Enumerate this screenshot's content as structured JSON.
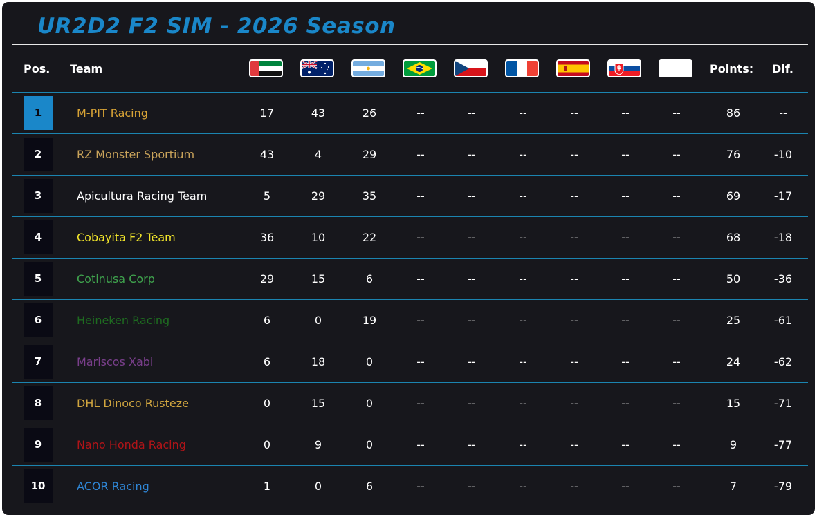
{
  "title": "UR2D2 F2 SIM - 2026 Season",
  "colors": {
    "title": "#1a87c9",
    "panel_bg": "#17171c",
    "row_line": "#1b84b0",
    "leader_box": "#1a87c9"
  },
  "headers": {
    "pos": "Pos.",
    "team": "Team",
    "points": "Points:",
    "dif": "Dif."
  },
  "races": [
    {
      "flag": "uae-flag-icon"
    },
    {
      "flag": "australia-flag-icon"
    },
    {
      "flag": "argentina-flag-icon"
    },
    {
      "flag": "brazil-flag-icon"
    },
    {
      "flag": "czech-flag-icon"
    },
    {
      "flag": "france-flag-icon"
    },
    {
      "flag": "spain-flag-icon"
    },
    {
      "flag": "slovakia-flag-icon"
    },
    {
      "flag": "blank-flag-icon"
    }
  ],
  "standings": [
    {
      "pos": "1",
      "team": "M-PIT Racing",
      "color": "#d9a436",
      "results": [
        "17",
        "43",
        "26",
        "--",
        "--",
        "--",
        "--",
        "--",
        "--"
      ],
      "points": "86",
      "dif": "--"
    },
    {
      "pos": "2",
      "team": "RZ Monster Sportium",
      "color": "#c9a35a",
      "results": [
        "43",
        "4",
        "29",
        "--",
        "--",
        "--",
        "--",
        "--",
        "--"
      ],
      "points": "76",
      "dif": "-10"
    },
    {
      "pos": "3",
      "team": "Apicultura Racing Team",
      "color": "#ffffff",
      "results": [
        "5",
        "29",
        "35",
        "--",
        "--",
        "--",
        "--",
        "--",
        "--"
      ],
      "points": "69",
      "dif": "-17"
    },
    {
      "pos": "4",
      "team": "Cobayita F2 Team",
      "color": "#f2e52a",
      "results": [
        "36",
        "10",
        "22",
        "--",
        "--",
        "--",
        "--",
        "--",
        "--"
      ],
      "points": "68",
      "dif": "-18"
    },
    {
      "pos": "5",
      "team": "Cotinusa Corp",
      "color": "#3fa34d",
      "results": [
        "29",
        "15",
        "6",
        "--",
        "--",
        "--",
        "--",
        "--",
        "--"
      ],
      "points": "50",
      "dif": "-36"
    },
    {
      "pos": "6",
      "team": "Heineken Racing",
      "color": "#1e6b20",
      "results": [
        "6",
        "0",
        "19",
        "--",
        "--",
        "--",
        "--",
        "--",
        "--"
      ],
      "points": "25",
      "dif": "-61"
    },
    {
      "pos": "7",
      "team": "Mariscos Xabi",
      "color": "#7a3f8c",
      "results": [
        "6",
        "18",
        "0",
        "--",
        "--",
        "--",
        "--",
        "--",
        "--"
      ],
      "points": "24",
      "dif": "-62"
    },
    {
      "pos": "8",
      "team": "DHL Dinoco Rusteze",
      "color": "#d1a63f",
      "results": [
        "0",
        "15",
        "0",
        "--",
        "--",
        "--",
        "--",
        "--",
        "--"
      ],
      "points": "15",
      "dif": "-71"
    },
    {
      "pos": "9",
      "team": "Nano Honda Racing",
      "color": "#b01418",
      "results": [
        "0",
        "9",
        "0",
        "--",
        "--",
        "--",
        "--",
        "--",
        "--"
      ],
      "points": "9",
      "dif": "-77"
    },
    {
      "pos": "10",
      "team": "ACOR Racing",
      "color": "#2f86d6",
      "results": [
        "1",
        "0",
        "6",
        "--",
        "--",
        "--",
        "--",
        "--",
        "--"
      ],
      "points": "7",
      "dif": "-79"
    }
  ]
}
